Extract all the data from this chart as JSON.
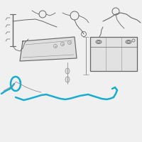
{
  "bg_color": "#f0f0f0",
  "highlight_color": "#1AACCF",
  "line_color": "#909090",
  "dark_color": "#666666",
  "faint_color": "#aaaaaa"
}
